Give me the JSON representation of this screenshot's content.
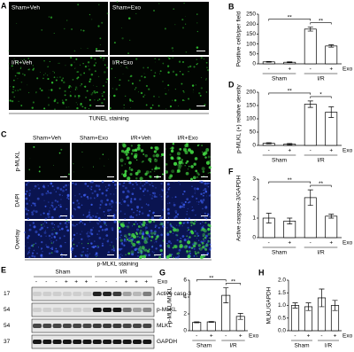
{
  "panel_a": {
    "letter": "A",
    "labels": [
      "Sham+Veh",
      "Sham+Exo",
      "I/R+Veh",
      "I/R+Exo"
    ],
    "caption": "TUNEL staining"
  },
  "panel_c": {
    "letter": "C",
    "columns": [
      "Sham+Veh",
      "Sham+Exo",
      "I/R+Veh",
      "I/R+Exo"
    ],
    "rows": [
      "p-MLKL",
      "DAPI",
      "Overlay"
    ],
    "caption": "p-MLKL staining"
  },
  "panel_e": {
    "letter": "E",
    "groups": [
      "Sham",
      "I/R"
    ],
    "treatment": "Exo",
    "signs": [
      "-",
      "-",
      "-",
      "+",
      "+",
      "+",
      "-",
      "-",
      "-",
      "+",
      "+",
      "+"
    ],
    "markers": [
      "17",
      "54",
      "54",
      "37"
    ],
    "bands": [
      "Active casp-3",
      "p-MLKL",
      "MLKL",
      "GAPDH"
    ]
  },
  "chart_data": [
    {
      "type": "bar",
      "panel": "B",
      "ylabel": "Positive cells/per field",
      "categories": [
        "-",
        "+",
        "-",
        "+"
      ],
      "groups": [
        "Sham",
        "I/R"
      ],
      "group_label": "Exo",
      "values": [
        10,
        8,
        175,
        90
      ],
      "errors": [
        2,
        2,
        10,
        6
      ],
      "color": "#ffffff",
      "ylim": [
        0,
        250
      ],
      "yticks": [
        0,
        50,
        100,
        150,
        200,
        250
      ],
      "annotations": [
        {
          "label": "**",
          "bars": [
            0,
            2
          ]
        },
        {
          "label": "**",
          "bars": [
            2,
            3
          ]
        }
      ]
    },
    {
      "type": "bar",
      "panel": "D",
      "ylabel": "p-MLKL (+) relative density",
      "categories": [
        "-",
        "+",
        "-",
        "+"
      ],
      "groups": [
        "Sham",
        "I/R"
      ],
      "group_label": "Exo",
      "values": [
        8,
        5,
        155,
        125
      ],
      "errors": [
        2,
        2,
        12,
        20
      ],
      "color": "#ffffff",
      "ylim": [
        0,
        200
      ],
      "yticks": [
        0,
        50,
        100,
        150,
        200
      ],
      "annotations": [
        {
          "label": "**",
          "bars": [
            0,
            2
          ]
        },
        {
          "label": "*",
          "bars": [
            2,
            3
          ]
        }
      ]
    },
    {
      "type": "bar",
      "panel": "F",
      "ylabel": "Active caspase-3/GAPDH",
      "categories": [
        "-",
        "+",
        "-",
        "+"
      ],
      "groups": [
        "Sham",
        "I/R"
      ],
      "group_label": "Exo",
      "values": [
        1.0,
        0.85,
        2.05,
        1.1
      ],
      "errors": [
        0.25,
        0.15,
        0.4,
        0.1
      ],
      "color": "#ffffff",
      "ylim": [
        0,
        3
      ],
      "yticks": [
        0,
        1,
        2,
        3
      ],
      "annotations": [
        {
          "label": "**",
          "bars": [
            0,
            2
          ]
        },
        {
          "label": "**",
          "bars": [
            2,
            3
          ]
        }
      ]
    },
    {
      "type": "bar",
      "panel": "G",
      "ylabel": "p-MLKL/MLKL",
      "categories": [
        "-",
        "+",
        "-",
        "+"
      ],
      "groups": [
        "Sham",
        "I/R"
      ],
      "group_label": "Exo",
      "values": [
        1.0,
        1.05,
        4.2,
        1.7
      ],
      "errors": [
        0.05,
        0.05,
        0.9,
        0.35
      ],
      "color": "#ffffff",
      "ylim": [
        0,
        6
      ],
      "yticks": [
        0,
        2,
        4,
        6
      ],
      "annotations": [
        {
          "label": "**",
          "bars": [
            0,
            2
          ]
        },
        {
          "label": "**",
          "bars": [
            2,
            3
          ]
        }
      ]
    },
    {
      "type": "bar",
      "panel": "H",
      "ylabel": "MLKL/GAPDH",
      "categories": [
        "-",
        "+",
        "-",
        "+"
      ],
      "groups": [
        "Sham",
        "I/R"
      ],
      "group_label": "Exo",
      "values": [
        1.0,
        0.95,
        1.3,
        1.0
      ],
      "errors": [
        0.1,
        0.15,
        0.35,
        0.2
      ],
      "color": "#ffffff",
      "ylim": [
        0,
        2
      ],
      "yticks": [
        {
          "value": 0,
          "label": "0.0"
        },
        {
          "value": 0.5,
          "label": "0.5"
        },
        {
          "value": 1,
          "label": "1.0"
        },
        {
          "value": 1.5,
          "label": "1.5"
        },
        {
          "value": 2,
          "label": "2.0"
        }
      ],
      "annotations": []
    }
  ]
}
